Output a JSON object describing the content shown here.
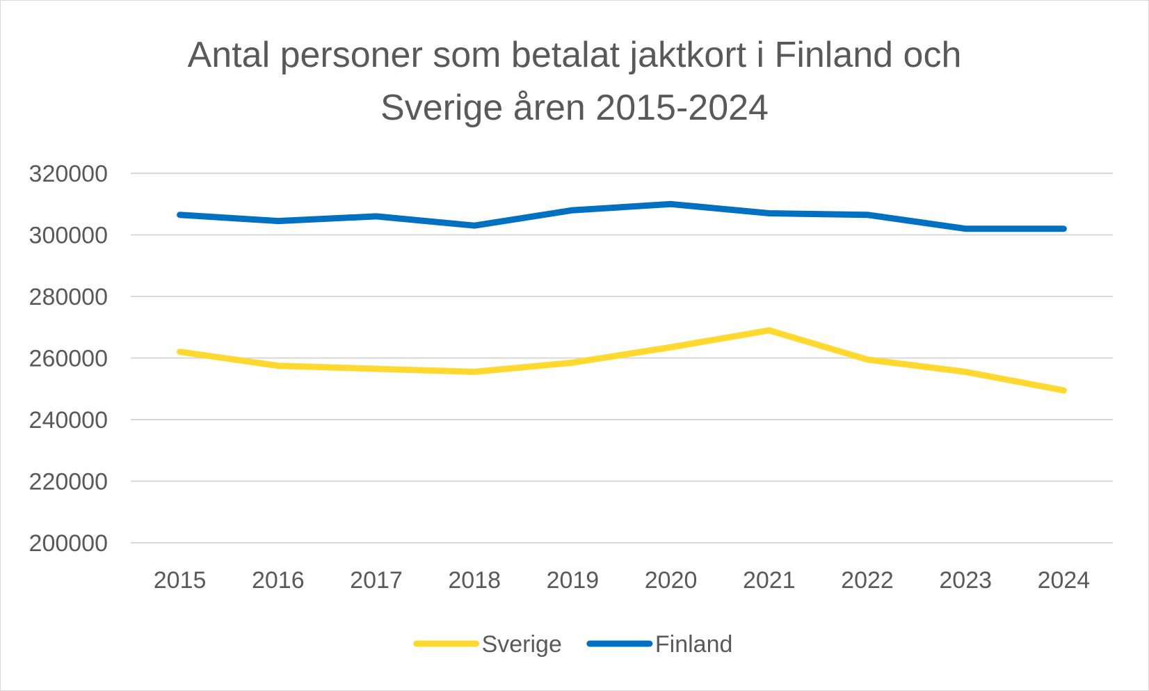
{
  "chart_data": {
    "type": "line",
    "title_lines": [
      "Antal personer som betalat jaktkort i Finland och",
      "Sverige åren 2015-2024"
    ],
    "xlabel": "",
    "ylabel": "",
    "categories": [
      "2015",
      "2016",
      "2017",
      "2018",
      "2019",
      "2020",
      "2021",
      "2022",
      "2023",
      "2024"
    ],
    "ylim": [
      200000,
      320000
    ],
    "yticks": [
      200000,
      220000,
      240000,
      260000,
      280000,
      300000,
      320000
    ],
    "ytick_labels": [
      "200000",
      "220000",
      "240000",
      "260000",
      "280000",
      "300000",
      "320000"
    ],
    "grid": true,
    "legend_position": "bottom",
    "series": [
      {
        "name": "Sverige",
        "color": "#FFD92F",
        "values": [
          262000,
          257500,
          256500,
          255500,
          258500,
          263500,
          269000,
          259500,
          255500,
          249500
        ]
      },
      {
        "name": "Finland",
        "color": "#0070C0",
        "values": [
          306500,
          304500,
          306000,
          303000,
          308000,
          310000,
          307000,
          306500,
          302000,
          302000
        ]
      }
    ]
  }
}
